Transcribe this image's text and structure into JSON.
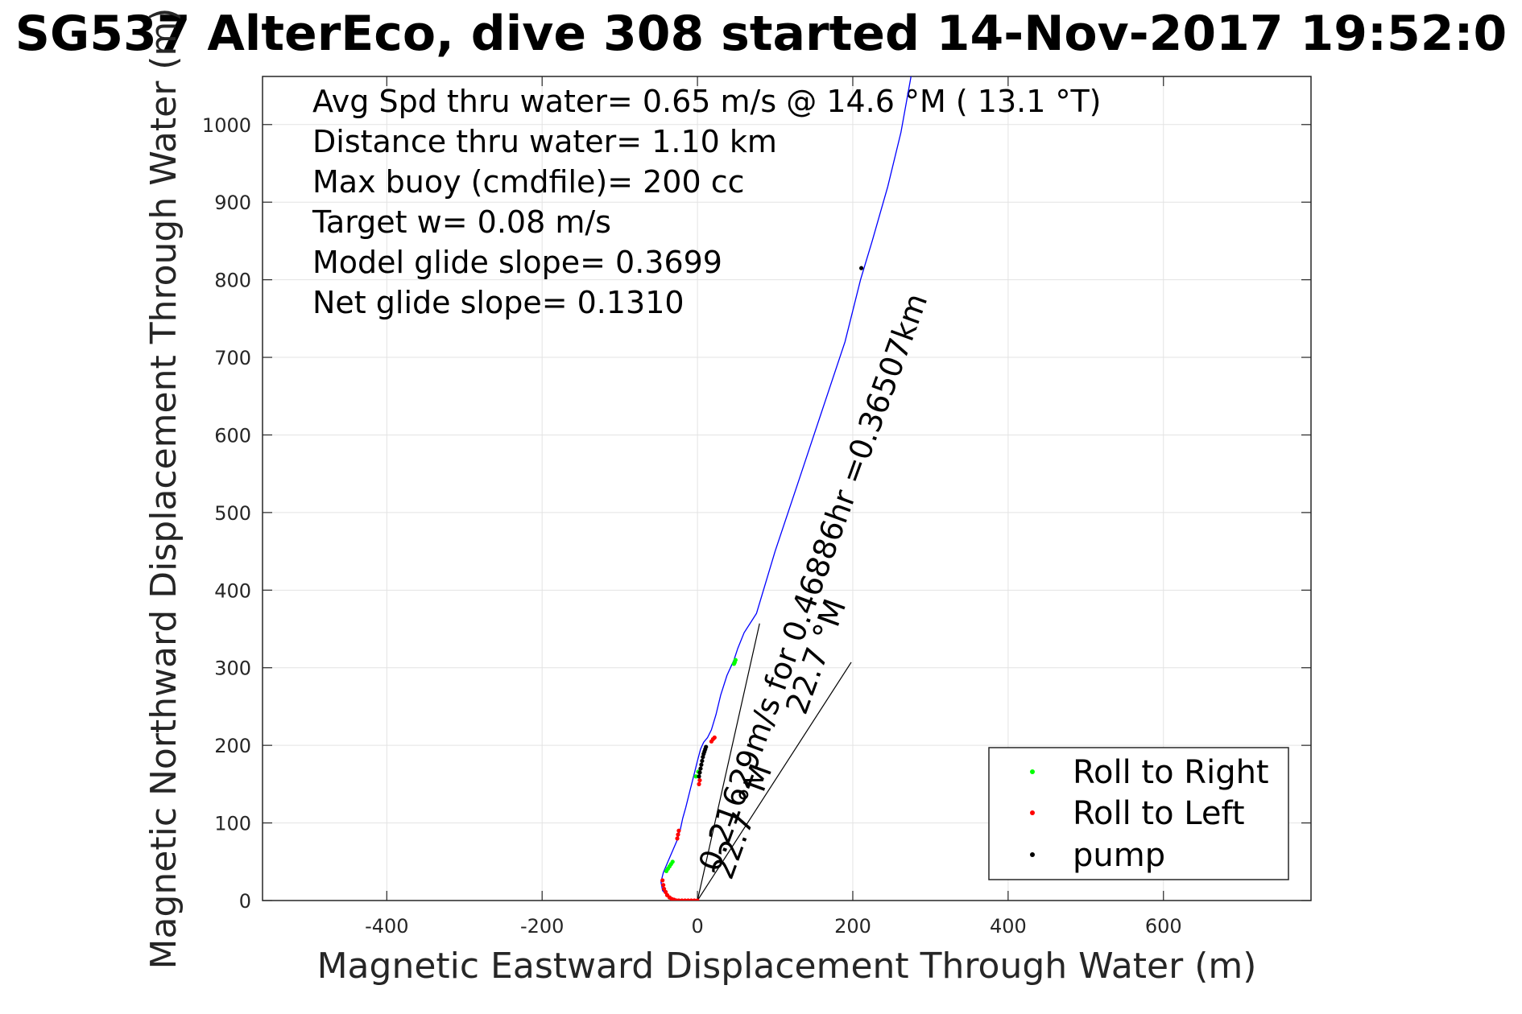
{
  "chart_data": {
    "type": "line",
    "title": "SG537 AlterEco, dive 308 started 14-Nov-2017 19:52:0",
    "xlabel": "Magnetic Eastward Displacement Through Water (m)",
    "ylabel": "Magnetic Northward Displacement Through Water (m)",
    "xlim": [
      -560,
      790
    ],
    "ylim": [
      0,
      1062
    ],
    "xticks": [
      -400,
      -200,
      0,
      200,
      400,
      600
    ],
    "yticks": [
      0,
      100,
      200,
      300,
      400,
      500,
      600,
      700,
      800,
      900,
      1000
    ],
    "grid": true,
    "annotations": [
      "Avg Spd thru water=  0.65 m/s @  14.6 °M ( 13.1 °T)",
      "Distance thru water=  1.10 km",
      "Max buoy (cmdfile)= 200 cc",
      "Target w= 0.08 m/s",
      "Model glide slope= 0.3699",
      "Net glide slope= 0.1310"
    ],
    "current_labels": [
      "0.21629m/s for 0.46886hr =0.36507km",
      "22.7 °M",
      "22.7 °M"
    ],
    "track": {
      "name": "track",
      "color": "#0000ff",
      "x": [
        0,
        -10,
        -25,
        -38,
        -45,
        -47,
        -44,
        -38,
        -32,
        -26,
        -22,
        -19,
        -15,
        -10,
        -5,
        0,
        4,
        8,
        13,
        18,
        24,
        30,
        38,
        47,
        52,
        60,
        76,
        100,
        130,
        160,
        190,
        210,
        225,
        245,
        262,
        275
      ],
      "y": [
        0,
        0,
        1,
        5,
        13,
        24,
        36,
        50,
        64,
        78,
        92,
        106,
        120,
        140,
        160,
        180,
        195,
        204,
        210,
        220,
        240,
        265,
        290,
        310,
        325,
        345,
        370,
        450,
        540,
        630,
        720,
        800,
        850,
        920,
        990,
        1062
      ]
    },
    "current_vectors": [
      {
        "x": [
          0,
          80
        ],
        "y": [
          0,
          357
        ]
      },
      {
        "x": [
          0,
          198
        ],
        "y": [
          0,
          307
        ]
      }
    ],
    "series": [
      {
        "name": "Roll to Right",
        "color": "#00ff00",
        "x": [
          -40,
          -38,
          -36,
          -34,
          -32,
          47,
          48,
          49,
          -2,
          1
        ],
        "y": [
          38,
          41,
          44,
          47,
          50,
          305,
          307,
          310,
          160,
          166
        ]
      },
      {
        "name": "Roll to Left",
        "color": "#ff0000",
        "x": [
          -45,
          -44,
          -43,
          -41,
          -39,
          -36,
          -33,
          -30,
          -27,
          -24,
          -20,
          -16,
          -12,
          -8,
          -4,
          0,
          -26,
          -25,
          -24,
          2,
          3,
          18,
          20,
          22
        ],
        "y": [
          26,
          20,
          15,
          11,
          7,
          4,
          2,
          1,
          0,
          0,
          0,
          0,
          0,
          0,
          0,
          0,
          80,
          85,
          90,
          150,
          155,
          205,
          208,
          210
        ]
      },
      {
        "name": "pump",
        "color": "#000000",
        "x": [
          2,
          3,
          4,
          5,
          6,
          7,
          8,
          9,
          10,
          11,
          211
        ],
        "y": [
          160,
          165,
          170,
          175,
          180,
          185,
          189,
          192,
          195,
          198,
          815
        ]
      }
    ],
    "legend": {
      "position": "bottom-right",
      "entries": [
        "Roll to Right",
        "Roll to Left",
        "pump"
      ]
    }
  }
}
